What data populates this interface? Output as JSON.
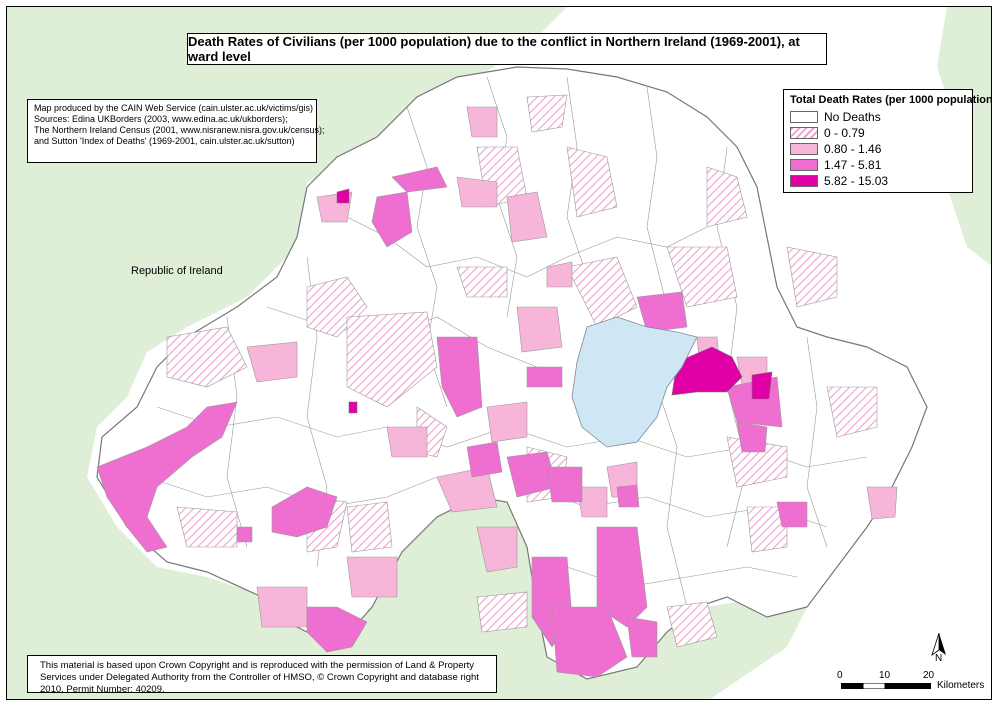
{
  "title": "Death Rates of Civilians (per 1000 population) due to the conflict in Northern Ireland (1969-2001), at ward level",
  "credits": [
    "Map produced by the CAIN Web Service (cain.ulster.ac.uk/victims/gis)",
    "Sources: Edina UKBorders (2003, www.edina.ac.uk/ukborders);",
    "The Northern Ireland Census (2001, www.nisranew.nisra.gov.uk/census);",
    "and Sutton 'Index of Deaths' (1969-2001, cain.ulster.ac.uk/sutton)"
  ],
  "legend": {
    "title": "Total Death Rates (per 1000 population)",
    "items": [
      {
        "label": "No Deaths",
        "color": "#ffffff",
        "pattern": "solid"
      },
      {
        "label": "0 - 0.79",
        "color": "#f4a8d4",
        "pattern": "hatch"
      },
      {
        "label": "0.80 - 1.46",
        "color": "#f7b5da",
        "pattern": "solid"
      },
      {
        "label": "1.47 - 5.81",
        "color": "#ef6fd0",
        "pattern": "solid"
      },
      {
        "label": "5.82 - 15.03",
        "color": "#e100a6",
        "pattern": "solid"
      }
    ]
  },
  "region_label": "Republic of Ireland",
  "lake_color": "#cfe6f5",
  "background_land_color": "#dfeed6",
  "copyright": "This material is based upon Crown Copyright and is reproduced with the permission of Land & Property Services under Delegated Authority from the Controller of HMSO, © Crown Copyright and database right 2010. Permit Number: 40209.",
  "scale_bar": {
    "ticks": [
      "0",
      "10",
      "20"
    ],
    "unit": "Kilometers"
  },
  "north_label": "N"
}
